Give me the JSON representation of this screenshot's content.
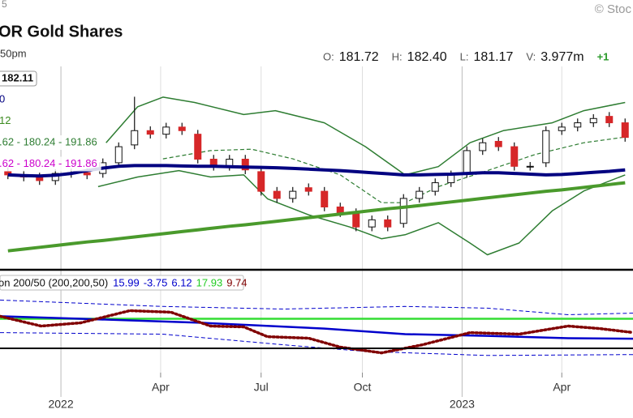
{
  "header": {
    "corner": "5",
    "copyright": "© Stoc",
    "title": "OR Gold Shares",
    "time": "50pm",
    "quote": [
      {
        "label": "O:",
        "value": "181.72"
      },
      {
        "label": "H:",
        "value": "182.40"
      },
      {
        "label": "L:",
        "value": "181.17"
      },
      {
        "label": "V:",
        "value": "3.977m"
      },
      {
        "label": "+1",
        "value": null
      }
    ]
  },
  "chart_data": {
    "type": "candlestick",
    "xlim": [
      -0.5,
      39.5
    ],
    "ylim": [
      145,
      202
    ],
    "xticks": [
      {
        "value": 9.65,
        "label": "Apr"
      },
      {
        "value": 16.0,
        "label": "Jul"
      },
      {
        "value": 22.4,
        "label": "Oct"
      },
      {
        "value": 35.0,
        "label": "Apr"
      }
    ],
    "year_ticks": [
      {
        "value": 3.35,
        "label": "2022"
      },
      {
        "value": 28.7,
        "label": "2023"
      }
    ],
    "up_color": "#ffffff",
    "down_color": "#d62728",
    "candles": [
      {
        "o": 172.5,
        "h": 173.7,
        "l": 170.4,
        "c": 171.6
      },
      {
        "o": 171.6,
        "h": 172.8,
        "l": 169.8,
        "c": 171.0
      },
      {
        "o": 171.0,
        "h": 172.2,
        "l": 168.8,
        "c": 170.0
      },
      {
        "o": 170.0,
        "h": 173.2,
        "l": 168.8,
        "c": 172.0
      },
      {
        "o": 172.0,
        "h": 173.4,
        "l": 170.8,
        "c": 172.2
      },
      {
        "o": 172.2,
        "h": 173.4,
        "l": 170.4,
        "c": 171.6
      },
      {
        "o": 172.0,
        "h": 176.2,
        "l": 170.8,
        "c": 175.0
      },
      {
        "o": 175.0,
        "h": 180.7,
        "l": 173.8,
        "c": 179.5
      },
      {
        "o": 180.0,
        "h": 193.5,
        "l": 178.8,
        "c": 184.0
      },
      {
        "o": 184.0,
        "h": 185.2,
        "l": 181.8,
        "c": 183.0
      },
      {
        "o": 183.0,
        "h": 186.2,
        "l": 181.8,
        "c": 185.0
      },
      {
        "o": 185.0,
        "h": 186.2,
        "l": 182.8,
        "c": 184.0
      },
      {
        "o": 183.0,
        "h": 184.2,
        "l": 174.8,
        "c": 176.0
      },
      {
        "o": 176.0,
        "h": 177.2,
        "l": 172.8,
        "c": 174.0
      },
      {
        "o": 174.0,
        "h": 177.2,
        "l": 172.8,
        "c": 176.0
      },
      {
        "o": 176.0,
        "h": 177.2,
        "l": 171.8,
        "c": 173.0
      },
      {
        "o": 172.5,
        "h": 173.7,
        "l": 165.8,
        "c": 167.0
      },
      {
        "o": 167.0,
        "h": 168.2,
        "l": 163.8,
        "c": 165.0
      },
      {
        "o": 165.0,
        "h": 168.2,
        "l": 163.8,
        "c": 167.0
      },
      {
        "o": 168.0,
        "h": 169.2,
        "l": 165.8,
        "c": 167.0
      },
      {
        "o": 167.0,
        "h": 168.2,
        "l": 161.4,
        "c": 162.6
      },
      {
        "o": 162.6,
        "h": 163.8,
        "l": 159.8,
        "c": 161.0
      },
      {
        "o": 161.0,
        "h": 162.2,
        "l": 155.8,
        "c": 157.0
      },
      {
        "o": 157.0,
        "h": 160.2,
        "l": 155.8,
        "c": 159.0
      },
      {
        "o": 159.0,
        "h": 160.2,
        "l": 155.8,
        "c": 157.0
      },
      {
        "o": 158.0,
        "h": 166.2,
        "l": 156.8,
        "c": 165.0
      },
      {
        "o": 165.0,
        "h": 168.2,
        "l": 163.8,
        "c": 167.0
      },
      {
        "o": 167.0,
        "h": 170.6,
        "l": 165.8,
        "c": 169.4
      },
      {
        "o": 169.4,
        "h": 172.8,
        "l": 168.2,
        "c": 171.6
      },
      {
        "o": 172.0,
        "h": 179.6,
        "l": 170.8,
        "c": 178.4
      },
      {
        "o": 178.4,
        "h": 181.8,
        "l": 177.2,
        "c": 180.6
      },
      {
        "o": 181.0,
        "h": 182.2,
        "l": 178.3,
        "c": 179.5
      },
      {
        "o": 179.5,
        "h": 180.7,
        "l": 172.8,
        "c": 174.0
      },
      {
        "o": 174.0,
        "h": 175.2,
        "l": 172.8,
        "c": 174.0
      },
      {
        "o": 175.0,
        "h": 185.2,
        "l": 173.8,
        "c": 184.0
      },
      {
        "o": 184.0,
        "h": 186.2,
        "l": 182.8,
        "c": 185.0
      },
      {
        "o": 185.0,
        "h": 187.4,
        "l": 183.8,
        "c": 186.2
      },
      {
        "o": 186.2,
        "h": 188.6,
        "l": 185.0,
        "c": 187.4
      },
      {
        "o": 188.0,
        "h": 189.2,
        "l": 185.0,
        "c": 186.2
      },
      {
        "o": 186.2,
        "h": 187.4,
        "l": 180.9,
        "c": 182.1
      }
    ],
    "lines": [
      {
        "color": "#4a9a2c",
        "width": 4,
        "values": [
          150.3,
          150.8,
          151.3,
          151.8,
          152.3,
          152.8,
          153.2,
          153.7,
          154.2,
          154.7,
          155.2,
          155.7,
          156.2,
          156.7,
          157.2,
          157.6,
          158.1,
          158.6,
          159.1,
          159.6,
          160.1,
          160.6,
          161.1,
          161.6,
          162.1,
          162.5,
          163.0,
          163.5,
          164.0,
          164.5,
          165.0,
          165.5,
          166.0,
          166.5,
          167.0,
          167.4,
          167.9,
          168.4,
          168.9,
          169.4
        ]
      },
      {
        "color": "#000080",
        "width": 4,
        "values": [
          171.6,
          171.4,
          171.3,
          171.5,
          172,
          172.8,
          173.5,
          174,
          174.2,
          174.2,
          174.2,
          174.1,
          174,
          174,
          173.9,
          173.8,
          173.7,
          173.6,
          173.4,
          173.2,
          173,
          172.8,
          172.5,
          172.2,
          171.9,
          171.6,
          171.6,
          171.7,
          171.8,
          172,
          172.2,
          172.2,
          172,
          171.8,
          171.6,
          171.7,
          172,
          172.3,
          172.6,
          173
        ]
      },
      {
        "color": "#2e7d32",
        "width": 1.5,
        "x": [
          6.2,
          8.2,
          9.8,
          11.8,
          14.9,
          16.9,
          20.0,
          22.6,
          25.1,
          27.2,
          29.2,
          31.3,
          34.4,
          36.4,
          39.0
        ],
        "values": [
          180.6,
          190.7,
          193.4,
          191.9,
          188.5,
          189.6,
          186.2,
          179.5,
          171.6,
          173.9,
          180.6,
          184.0,
          186.2,
          189.6,
          191.9
        ]
      },
      {
        "color": "#2e7d32",
        "width": 1.5,
        "x": [
          5.7,
          8.2,
          10.8,
          12.8,
          14.9,
          16.4,
          19.0,
          21.6,
          23.6,
          25.1,
          27.2,
          29.2,
          30.3,
          32.3,
          34.4,
          36.4,
          39.0
        ],
        "values": [
          168.3,
          171.0,
          172.8,
          171.0,
          171.6,
          164.9,
          160.4,
          157.0,
          153.7,
          154.8,
          158.2,
          152.5,
          149.2,
          152.5,
          161.5,
          167.1,
          171.6
        ]
      },
      {
        "color": "#2e7d32",
        "width": 1.2,
        "dash": true,
        "x": [
          9.8,
          12.8,
          15.4,
          18.0,
          21.0,
          23.6,
          25.1,
          27.2,
          30.3,
          33.3,
          36.4,
          39.0
        ],
        "values": [
          176.1,
          178.4,
          178.8,
          176.1,
          171.6,
          163.8,
          163.8,
          168.3,
          172.8,
          177.3,
          180.6,
          182.2
        ]
      }
    ],
    "price_label": "182.11",
    "legend_texts": [
      {
        "text": "0",
        "color": "#000080"
      },
      {
        "text": "12",
        "color": "#3a8a1e"
      },
      {
        "text": ".62 - 180.24 - 191.86",
        "color": "#2e7d32"
      },
      {
        "text": ".62 - 180.24 - 191.86",
        "color": "#cc00cc"
      }
    ],
    "indicator": {
      "title": "on 200/50 (200,200,50)",
      "ylim": [
        -14,
        46
      ],
      "legend_values": [
        {
          "text": "15.99",
          "color": "#0000cc"
        },
        {
          "text": "-3.75",
          "color": "#0000cc"
        },
        {
          "text": "6.12",
          "color": "#0000cc"
        },
        {
          "text": "17.93",
          "color": "#22cc22"
        },
        {
          "text": "9.74",
          "color": "#800000"
        }
      ],
      "lines": [
        {
          "color": "#0000cc",
          "width": 1,
          "dash": true,
          "x": [
            -0.5,
            9.8,
            17.4,
            25.1,
            30.3,
            35.4,
            39.5
          ],
          "values": [
            29.0,
            25.2,
            23.7,
            25.2,
            24.2,
            20.3,
            21.3
          ]
        },
        {
          "color": "#0000cc",
          "width": 1,
          "dash": true,
          "x": [
            -0.5,
            9.8,
            17.4,
            22.6,
            30.3,
            39.5
          ],
          "values": [
            9.7,
            8.8,
            2.5,
            -1.4,
            -3.8,
            -3.3
          ]
        },
        {
          "color": "#33dd33",
          "width": 2.5,
          "x": [
            -0.5,
            39.5
          ],
          "values": [
            17.93,
            17.93
          ]
        },
        {
          "color": "#0000cc",
          "width": 2.5,
          "x": [
            -0.5,
            4.6,
            12.3,
            20.0,
            25.1,
            30.3,
            35.4,
            39.5
          ],
          "values": [
            19.4,
            17.9,
            15.5,
            12.1,
            8.8,
            7.8,
            6.4,
            6.12
          ]
        },
        {
          "color": "#800000",
          "width": 3.5,
          "dot": true,
          "x": [
            -0.5,
            2.1,
            4.6,
            7.7,
            10.3,
            12.8,
            14.9,
            16.4,
            19.0,
            21.0,
            23.6,
            26.2,
            29.2,
            32.3,
            35.4,
            37.4,
            39.5
          ],
          "values": [
            19.4,
            13.6,
            15.5,
            22.7,
            21.8,
            13.6,
            13.1,
            7.3,
            6.4,
            1.1,
            -2.3,
            2.5,
            9.7,
            8.8,
            13.6,
            12.1,
            9.74
          ]
        }
      ]
    }
  }
}
